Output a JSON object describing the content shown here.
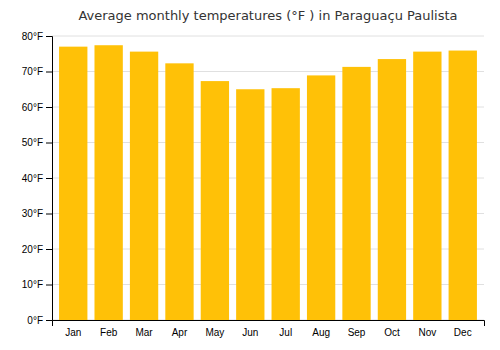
{
  "chart_data": {
    "type": "bar",
    "title": "Average monthly temperatures (°F ) in Paraguaçu Paulista",
    "categories": [
      "Jan",
      "Feb",
      "Mar",
      "Apr",
      "May",
      "Jun",
      "Jul",
      "Aug",
      "Sep",
      "Oct",
      "Nov",
      "Dec"
    ],
    "values": [
      77.0,
      77.4,
      75.6,
      72.3,
      67.3,
      65.0,
      65.3,
      68.9,
      71.3,
      73.5,
      75.6,
      75.9
    ],
    "color": "#FFC107",
    "ylim": [
      0,
      80
    ],
    "yticks": [
      {
        "value": 0,
        "label": "0°F"
      },
      {
        "value": 10,
        "label": "10°F"
      },
      {
        "value": 20,
        "label": "20°F"
      },
      {
        "value": 30,
        "label": "30°F"
      },
      {
        "value": 40,
        "label": "40°F"
      },
      {
        "value": 50,
        "label": "50°F"
      },
      {
        "value": 60,
        "label": "60°F"
      },
      {
        "value": 70,
        "label": "70°F"
      },
      {
        "value": 80,
        "label": "80°F"
      }
    ],
    "grid": true
  }
}
